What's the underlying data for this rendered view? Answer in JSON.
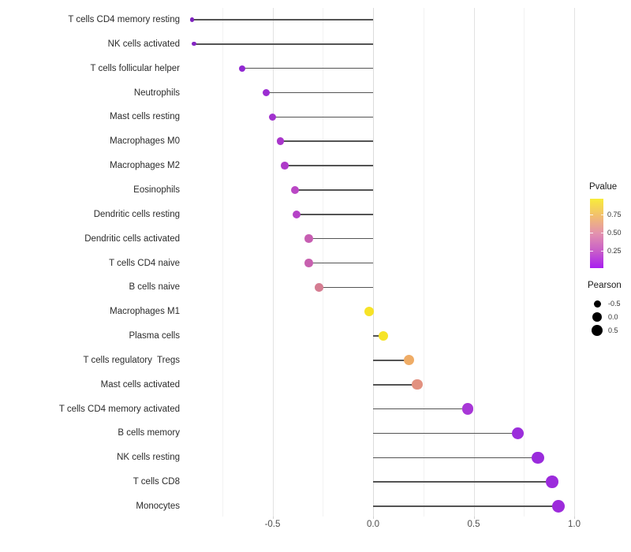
{
  "chart_data": {
    "type": "lollipop",
    "title": "",
    "xlabel": "",
    "ylabel": "",
    "x_axis": {
      "ticks": [
        -0.5,
        0.0,
        0.5,
        1.0
      ],
      "tick_labels": [
        "-0.5",
        "0.0",
        "0.5",
        "1.0"
      ],
      "minor_gridlines": [
        -0.75,
        -0.25,
        0.25,
        0.75
      ],
      "range": [
        -0.94,
        1.03
      ],
      "zero_line": 0.0
    },
    "grid": true,
    "segment_color": "#545454",
    "points": [
      {
        "label": "T cells CD4 memory resting",
        "pearson": -0.9,
        "color": "#7e22be"
      },
      {
        "label": "NK cells activated",
        "pearson": -0.89,
        "color": "#8526c3"
      },
      {
        "label": "T cells follicular helper",
        "pearson": -0.65,
        "color": "#9129d2"
      },
      {
        "label": "Neutrophils",
        "pearson": -0.53,
        "color": "#9c2dd2"
      },
      {
        "label": "Mast cells resting",
        "pearson": -0.5,
        "color": "#a132ce"
      },
      {
        "label": "Macrophages M0",
        "pearson": -0.46,
        "color": "#a936cb"
      },
      {
        "label": "Macrophages M2",
        "pearson": -0.44,
        "color": "#ae3ac9"
      },
      {
        "label": "Eosinophils",
        "pearson": -0.39,
        "color": "#ba47c5"
      },
      {
        "label": "Dendritic cells resting",
        "pearson": -0.38,
        "color": "#b542c7"
      },
      {
        "label": "Dendritic cells activated",
        "pearson": -0.32,
        "color": "#c75eb2"
      },
      {
        "label": "T cells CD4 naive",
        "pearson": -0.32,
        "color": "#c760af"
      },
      {
        "label": "B cells naive",
        "pearson": -0.27,
        "color": "#d57d92"
      },
      {
        "label": "Macrophages M1",
        "pearson": -0.02,
        "color": "#f7e327"
      },
      {
        "label": "Plasma cells",
        "pearson": 0.05,
        "color": "#f6e428"
      },
      {
        "label": "T cells regulatory  Tregs",
        "pearson": 0.18,
        "color": "#efac66"
      },
      {
        "label": "Mast cells activated",
        "pearson": 0.22,
        "color": "#e29180"
      },
      {
        "label": "T cells CD4 memory activated",
        "pearson": 0.47,
        "color": "#a837d7"
      },
      {
        "label": "B cells memory",
        "pearson": 0.72,
        "color": "#9b2edb"
      },
      {
        "label": "NK cells resting",
        "pearson": 0.82,
        "color": "#9a2bdc"
      },
      {
        "label": "T cells CD8",
        "pearson": 0.89,
        "color": "#9c2bdc"
      },
      {
        "label": "Monocytes",
        "pearson": 0.92,
        "color": "#9d2bdb"
      }
    ],
    "legend": {
      "position": "right",
      "pvalue": {
        "title": "Pvalue",
        "tick_labels": [
          "0.75",
          "0.50",
          "0.25"
        ],
        "gradient_top_to_bottom": [
          "#f8ec3a",
          "#f2be70",
          "#e392ae",
          "#c95fc8",
          "#a81ef0"
        ]
      },
      "pearson": {
        "title": "Pearson",
        "items": [
          {
            "label": "-0.5",
            "size": 9
          },
          {
            "label": "0.0",
            "size": 12
          },
          {
            "label": "0.5",
            "size": 14
          }
        ]
      }
    }
  }
}
